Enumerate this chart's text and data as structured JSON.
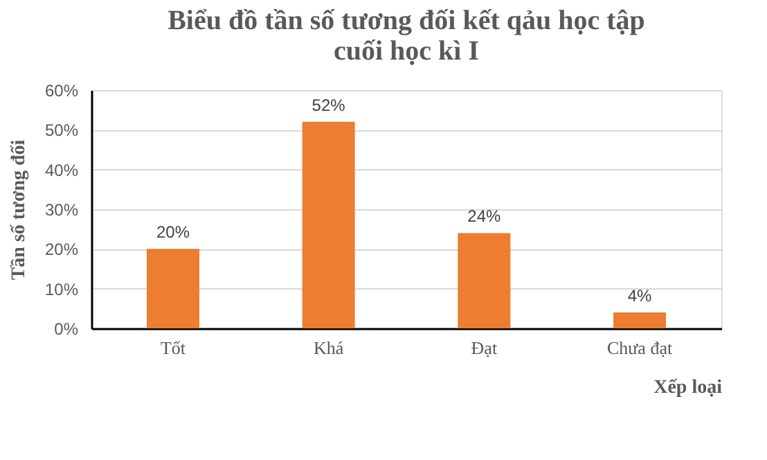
{
  "chart_data": {
    "type": "bar",
    "title": "Biểu đồ tần số tương đối kết qảu học tập\ncuối học kì I",
    "xlabel": "Xếp loại",
    "ylabel": "Tần số tương đối",
    "categories": [
      "Tốt",
      "Khá",
      "Đạt",
      "Chưa đạt"
    ],
    "values": [
      20,
      52,
      24,
      4
    ],
    "color": "#ed7d31",
    "value_labels": [
      "20%",
      "52%",
      "24%",
      "4%"
    ],
    "ylim": [
      0,
      60
    ],
    "yticks": [
      {
        "value": 0,
        "label": "0%"
      },
      {
        "value": 10,
        "label": "10%"
      },
      {
        "value": 20,
        "label": "20%"
      },
      {
        "value": 30,
        "label": "30%"
      },
      {
        "value": 40,
        "label": "40%"
      },
      {
        "value": 50,
        "label": "50%"
      },
      {
        "value": 60,
        "label": "60%"
      }
    ],
    "grid": "y"
  }
}
